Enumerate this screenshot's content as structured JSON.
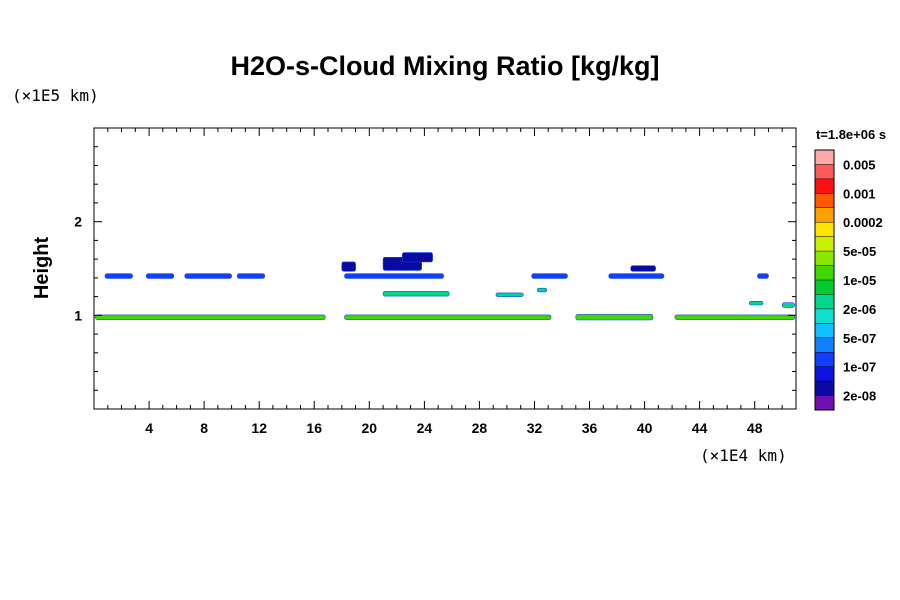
{
  "chart_data": {
    "type": "heatmap",
    "title": "H2O-s-Cloud Mixing Ratio [kg/kg]",
    "xlabel": "",
    "ylabel": "Height",
    "x_unit": "(×1E4 km)",
    "y_unit": "(×1E5 km)",
    "time_label": "t=1.8e+06 s",
    "xlim": [
      0,
      51
    ],
    "ylim": [
      0,
      3
    ],
    "x_ticks": [
      4,
      8,
      12,
      16,
      20,
      24,
      28,
      32,
      36,
      40,
      44,
      48
    ],
    "x_tick_labels": [
      "4",
      "8",
      "12",
      "16",
      "20",
      "24",
      "28",
      "32",
      "36",
      "40",
      "44",
      "48"
    ],
    "y_ticks": [
      1,
      2
    ],
    "y_tick_labels": [
      "1",
      "2"
    ],
    "x_minor_step": 1,
    "y_minor_step": 0.2,
    "colorbar": {
      "labels": [
        "0.005",
        "0.001",
        "0.0002",
        "5e-05",
        "1e-05",
        "2e-06",
        "5e-07",
        "1e-07",
        "2e-08"
      ],
      "colors": [
        "#ffa8a8",
        "#ff5a5a",
        "#ff1010",
        "#ff5a00",
        "#ffa000",
        "#ffe400",
        "#c8f000",
        "#88e800",
        "#40d800",
        "#00cc30",
        "#00d890",
        "#10e0d0",
        "#10c0ff",
        "#1080ff",
        "#1040ff",
        "#1010e0",
        "#0a0aa0",
        "#7010b0"
      ]
    },
    "features": [
      {
        "x0": 0.1,
        "x1": 16.8,
        "y": 0.98,
        "h": 0.05,
        "level": "5e-05"
      },
      {
        "x0": 18.2,
        "x1": 33.2,
        "y": 0.98,
        "h": 0.05,
        "level": "5e-05"
      },
      {
        "x0": 35.0,
        "x1": 40.6,
        "y": 0.98,
        "h": 0.06,
        "level": "5e-05"
      },
      {
        "x0": 42.2,
        "x1": 50.9,
        "y": 0.98,
        "h": 0.05,
        "level": "5e-05"
      },
      {
        "x0": 21.0,
        "x1": 25.8,
        "y": 1.23,
        "h": 0.05,
        "level": "1e-05"
      },
      {
        "x0": 29.2,
        "x1": 31.2,
        "y": 1.22,
        "h": 0.04,
        "level": "1e-05"
      },
      {
        "x0": 0.8,
        "x1": 2.8,
        "y": 1.42,
        "h": 0.05,
        "level": "5e-07"
      },
      {
        "x0": 3.8,
        "x1": 5.8,
        "y": 1.42,
        "h": 0.05,
        "level": "5e-07"
      },
      {
        "x0": 6.6,
        "x1": 10.0,
        "y": 1.42,
        "h": 0.05,
        "level": "5e-07"
      },
      {
        "x0": 10.4,
        "x1": 12.4,
        "y": 1.42,
        "h": 0.05,
        "level": "5e-07"
      },
      {
        "x0": 18.2,
        "x1": 25.4,
        "y": 1.42,
        "h": 0.05,
        "level": "5e-07"
      },
      {
        "x0": 31.8,
        "x1": 34.4,
        "y": 1.42,
        "h": 0.05,
        "level": "5e-07"
      },
      {
        "x0": 37.4,
        "x1": 41.4,
        "y": 1.42,
        "h": 0.05,
        "level": "5e-07"
      },
      {
        "x0": 48.2,
        "x1": 49.0,
        "y": 1.42,
        "h": 0.05,
        "level": "5e-07"
      },
      {
        "x0": 18.0,
        "x1": 19.0,
        "y": 1.52,
        "h": 0.1,
        "level": "1e-07"
      },
      {
        "x0": 21.0,
        "x1": 23.8,
        "y": 1.55,
        "h": 0.14,
        "level": "1e-07"
      },
      {
        "x0": 22.4,
        "x1": 24.6,
        "y": 1.62,
        "h": 0.1,
        "level": "1e-07"
      },
      {
        "x0": 39.0,
        "x1": 40.8,
        "y": 1.5,
        "h": 0.06,
        "level": "1e-07"
      },
      {
        "x0": 32.2,
        "x1": 32.9,
        "y": 1.27,
        "h": 0.04,
        "level": "1e-05"
      },
      {
        "x0": 50.0,
        "x1": 50.9,
        "y": 1.11,
        "h": 0.05,
        "level": "1e-05"
      },
      {
        "x0": 47.6,
        "x1": 48.6,
        "y": 1.13,
        "h": 0.04,
        "level": "1e-05"
      }
    ]
  }
}
